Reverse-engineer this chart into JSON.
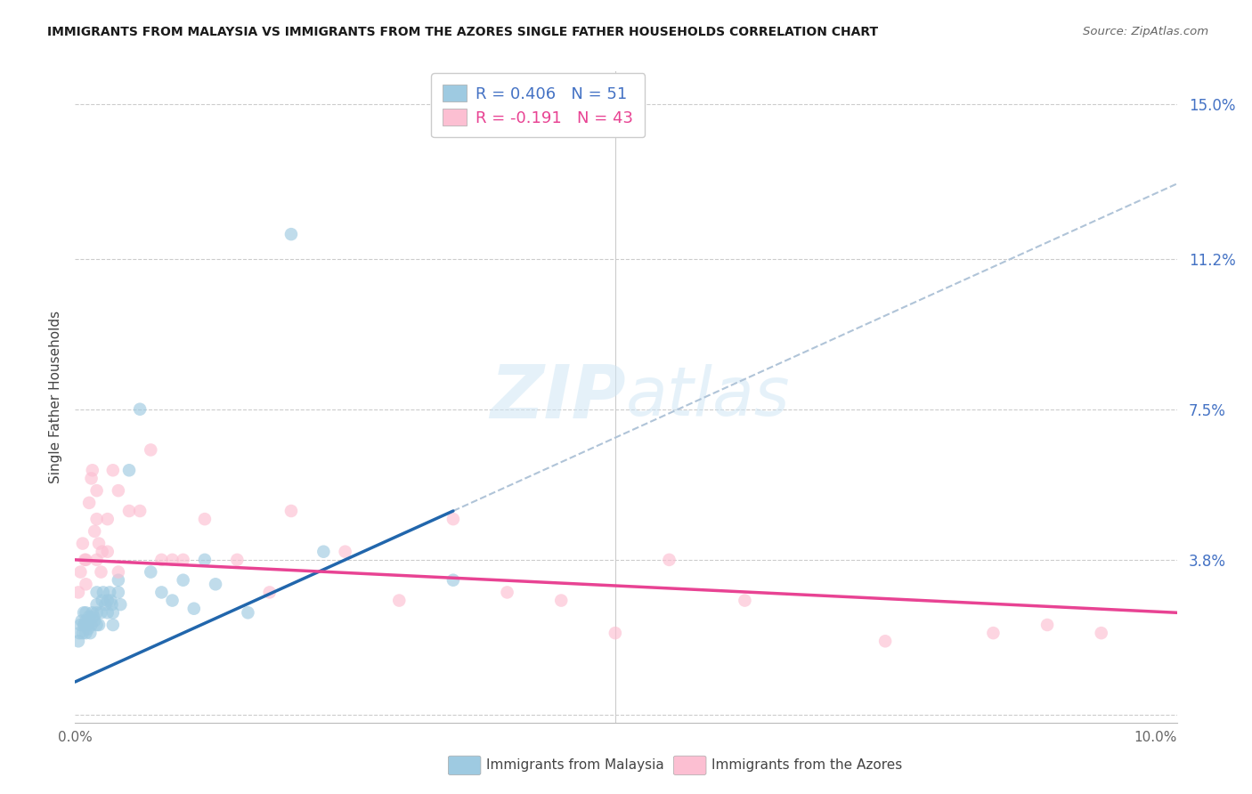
{
  "title": "IMMIGRANTS FROM MALAYSIA VS IMMIGRANTS FROM THE AZORES SINGLE FATHER HOUSEHOLDS CORRELATION CHART",
  "source": "Source: ZipAtlas.com",
  "ylabel": "Single Father Households",
  "xlim": [
    0.0,
    0.102
  ],
  "ylim": [
    -0.002,
    0.158
  ],
  "watermark_zip": "ZIP",
  "watermark_atlas": "atlas",
  "legend_malaysia": "R = 0.406   N = 51",
  "legend_azores": "R = -0.191   N = 43",
  "legend_label_malaysia": "Immigrants from Malaysia",
  "legend_label_azores": "Immigrants from the Azores",
  "color_malaysia": "#9ecae1",
  "color_azores": "#fcbfd2",
  "color_trendline_malaysia": "#2166ac",
  "color_trendline_azores": "#e84393",
  "color_dashed": "#b0c4d8",
  "ytick_vals": [
    0.0,
    0.038,
    0.075,
    0.112,
    0.15
  ],
  "ytick_labels": [
    "",
    "3.8%",
    "7.5%",
    "11.2%",
    "15.0%"
  ],
  "malaysia_x": [
    0.0003,
    0.0004,
    0.0005,
    0.0006,
    0.0007,
    0.0008,
    0.0008,
    0.0009,
    0.001,
    0.001,
    0.001,
    0.0011,
    0.0012,
    0.0013,
    0.0014,
    0.0015,
    0.0016,
    0.0017,
    0.0018,
    0.002,
    0.002,
    0.002,
    0.002,
    0.0022,
    0.0024,
    0.0025,
    0.0026,
    0.0028,
    0.003,
    0.003,
    0.0032,
    0.0033,
    0.0034,
    0.0035,
    0.0035,
    0.004,
    0.004,
    0.0042,
    0.005,
    0.006,
    0.007,
    0.008,
    0.009,
    0.01,
    0.011,
    0.012,
    0.013,
    0.016,
    0.02,
    0.023,
    0.035
  ],
  "malaysia_y": [
    0.018,
    0.02,
    0.022,
    0.023,
    0.02,
    0.022,
    0.025,
    0.022,
    0.02,
    0.023,
    0.025,
    0.022,
    0.021,
    0.024,
    0.02,
    0.022,
    0.025,
    0.024,
    0.023,
    0.022,
    0.025,
    0.027,
    0.03,
    0.022,
    0.025,
    0.028,
    0.03,
    0.027,
    0.025,
    0.028,
    0.03,
    0.028,
    0.027,
    0.025,
    0.022,
    0.03,
    0.033,
    0.027,
    0.06,
    0.075,
    0.035,
    0.03,
    0.028,
    0.033,
    0.026,
    0.038,
    0.032,
    0.025,
    0.118,
    0.04,
    0.033
  ],
  "azores_x": [
    0.0003,
    0.0005,
    0.0007,
    0.0009,
    0.001,
    0.001,
    0.0013,
    0.0015,
    0.0016,
    0.0018,
    0.002,
    0.002,
    0.002,
    0.0022,
    0.0024,
    0.0025,
    0.003,
    0.003,
    0.0035,
    0.004,
    0.004,
    0.005,
    0.006,
    0.007,
    0.008,
    0.009,
    0.01,
    0.012,
    0.015,
    0.018,
    0.02,
    0.025,
    0.03,
    0.035,
    0.04,
    0.045,
    0.05,
    0.055,
    0.062,
    0.075,
    0.085,
    0.09,
    0.095
  ],
  "azores_y": [
    0.03,
    0.035,
    0.042,
    0.038,
    0.032,
    0.038,
    0.052,
    0.058,
    0.06,
    0.045,
    0.038,
    0.048,
    0.055,
    0.042,
    0.035,
    0.04,
    0.04,
    0.048,
    0.06,
    0.035,
    0.055,
    0.05,
    0.05,
    0.065,
    0.038,
    0.038,
    0.038,
    0.048,
    0.038,
    0.03,
    0.05,
    0.04,
    0.028,
    0.048,
    0.03,
    0.028,
    0.02,
    0.038,
    0.028,
    0.018,
    0.02,
    0.022,
    0.02
  ],
  "trendline_malaysia_x0": 0.0,
  "trendline_malaysia_y0": 0.008,
  "trendline_malaysia_x1": 0.035,
  "trendline_malaysia_y1": 0.05,
  "trendline_malaysia_solid_end": 0.035,
  "trendline_dashed_end": 0.102,
  "trendline_azores_x0": 0.0,
  "trendline_azores_y0": 0.038,
  "trendline_azores_x1": 0.102,
  "trendline_azores_y1": 0.025
}
